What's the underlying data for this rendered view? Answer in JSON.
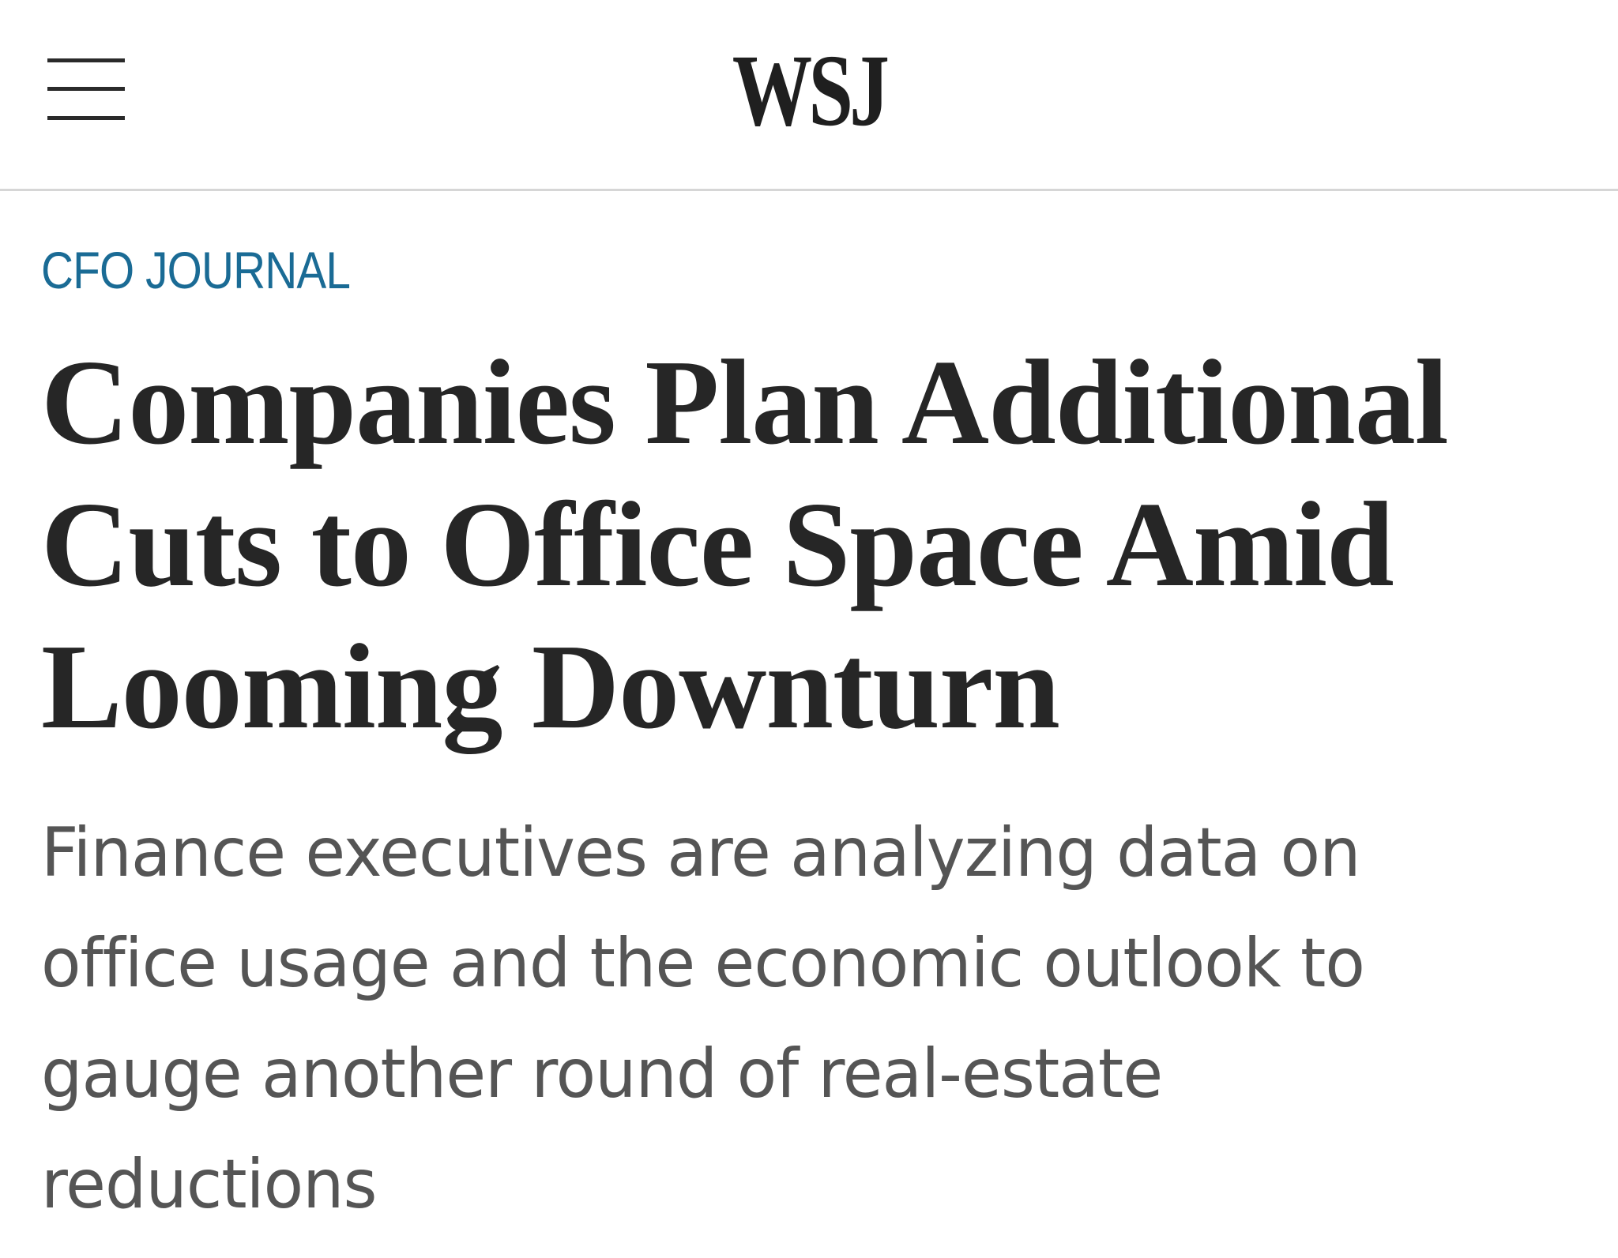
{
  "header": {
    "logo": "WSJ",
    "menu_icon": "hamburger-menu-icon"
  },
  "article": {
    "section": "CFO JOURNAL",
    "headline": "Companies Plan Additional Cuts to Office Space Amid Looming Downturn",
    "dek": "Finance executives are analyzing data on office usage and the economic outlook to gauge another round of real-estate reductions"
  },
  "colors": {
    "section_label": "#1a6b95",
    "headline": "#262626",
    "dek": "#555555",
    "divider": "#d6d6d6"
  }
}
